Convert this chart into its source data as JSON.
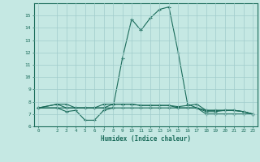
{
  "xlabel": "Humidex (Indice chaleur)",
  "background_color": "#c5e8e3",
  "grid_color": "#a0cccc",
  "line_color": "#1a6b5a",
  "xlim": [
    -0.5,
    23.5
  ],
  "ylim": [
    6,
    16
  ],
  "yticks": [
    6,
    7,
    8,
    9,
    10,
    11,
    12,
    13,
    14,
    15
  ],
  "xticks": [
    0,
    2,
    3,
    4,
    5,
    6,
    7,
    8,
    9,
    10,
    11,
    12,
    13,
    14,
    15,
    16,
    17,
    18,
    19,
    20,
    21,
    22,
    23
  ],
  "series": [
    {
      "x": [
        0,
        2,
        3,
        4,
        5,
        6,
        7,
        8,
        9,
        10,
        11,
        12,
        13,
        14,
        15,
        16,
        17,
        18,
        19,
        20,
        21,
        22,
        23
      ],
      "y": [
        7.5,
        7.5,
        7.5,
        7.5,
        7.5,
        7.5,
        7.5,
        7.5,
        11.5,
        14.7,
        13.8,
        14.8,
        15.5,
        15.7,
        12.0,
        7.8,
        7.5,
        7.2,
        7.2,
        7.3,
        7.3,
        7.2,
        7.0
      ]
    },
    {
      "x": [
        0,
        2,
        3,
        4,
        5,
        6,
        7,
        8,
        9,
        10,
        11,
        12,
        13,
        14,
        15,
        16,
        17,
        18,
        19,
        20,
        21,
        22,
        23
      ],
      "y": [
        7.5,
        7.8,
        7.5,
        7.5,
        7.5,
        7.5,
        7.8,
        7.8,
        7.8,
        7.8,
        7.7,
        7.7,
        7.7,
        7.7,
        7.6,
        7.7,
        7.8,
        7.3,
        7.3,
        7.3,
        7.3,
        7.2,
        7.0
      ]
    },
    {
      "x": [
        0,
        2,
        3,
        4,
        5,
        6,
        7,
        8,
        9,
        10,
        11,
        12,
        13,
        14,
        15,
        16,
        17,
        18,
        19,
        20,
        21,
        22,
        23
      ],
      "y": [
        7.5,
        7.5,
        7.2,
        7.3,
        6.5,
        6.5,
        7.3,
        7.5,
        7.5,
        7.5,
        7.5,
        7.5,
        7.5,
        7.5,
        7.5,
        7.5,
        7.5,
        7.0,
        7.0,
        7.0,
        7.0,
        7.0,
        7.0
      ]
    },
    {
      "x": [
        0,
        2,
        3,
        4,
        5,
        6,
        7,
        8,
        9,
        10,
        11,
        12,
        13,
        14,
        15,
        16,
        17,
        18,
        19,
        20,
        21,
        22,
        23
      ],
      "y": [
        7.5,
        7.8,
        7.8,
        7.5,
        7.5,
        7.5,
        7.5,
        7.8,
        7.8,
        7.8,
        7.7,
        7.7,
        7.7,
        7.7,
        7.5,
        7.5,
        7.5,
        7.3,
        7.3,
        7.3,
        7.3,
        7.2,
        7.0
      ]
    }
  ]
}
